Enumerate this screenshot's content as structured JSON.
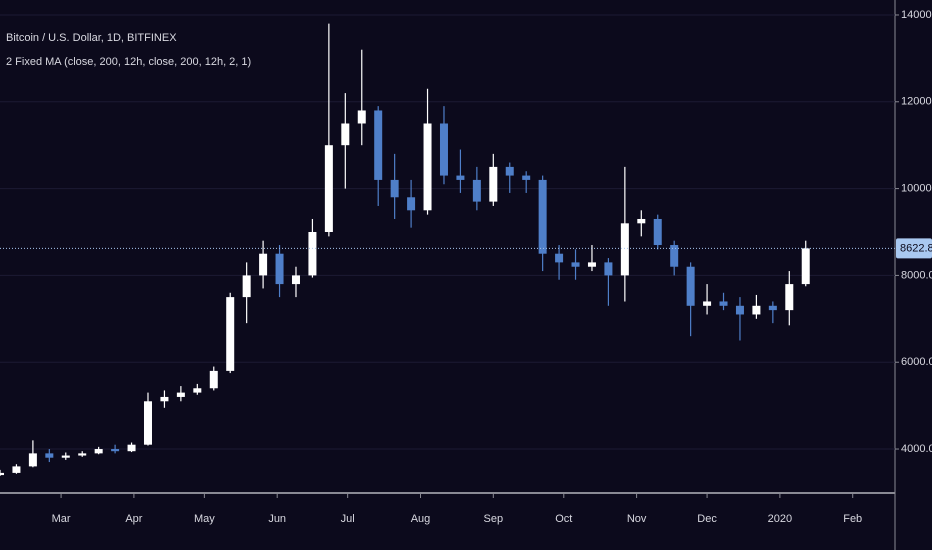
{
  "chart_data": {
    "type": "candlestick",
    "title": "Bitcoin / U.S. Dollar, 1D, BITFINEX",
    "subtitle": "2 Fixed MA (close, 200, 12h, close, 200, 12h, 2, 1)",
    "x": [
      0,
      7,
      14,
      21,
      28,
      35,
      42,
      49,
      56,
      63,
      70,
      77,
      84,
      91,
      98,
      105,
      112,
      119,
      126,
      133,
      140,
      147,
      154,
      161,
      168,
      175,
      182,
      189,
      196,
      203,
      210,
      217,
      224,
      231,
      238,
      245,
      252,
      259,
      266,
      273,
      280,
      287,
      294,
      301,
      308,
      315,
      322,
      329,
      336,
      343
    ],
    "open": [
      3400,
      3450,
      3600,
      3900,
      3800,
      3850,
      3900,
      4000,
      3950,
      4100,
      5100,
      5200,
      5300,
      5400,
      5800,
      7500,
      8000,
      8500,
      7800,
      8000,
      9000,
      11000,
      11500,
      11800,
      10200,
      9800,
      9500,
      11500,
      10300,
      10200,
      9700,
      10500,
      10300,
      10200,
      8500,
      8300,
      8200,
      8300,
      8000,
      9200,
      9300,
      8700,
      8200,
      7300,
      7400,
      7300,
      7100,
      7300,
      7200,
      7800
    ],
    "high": [
      3520,
      3650,
      4200,
      4000,
      3920,
      3950,
      4050,
      4100,
      4150,
      5300,
      5350,
      5450,
      5500,
      5900,
      7600,
      8300,
      8800,
      8700,
      8200,
      9300,
      13800,
      12200,
      13200,
      11900,
      10800,
      10200,
      12300,
      11900,
      10900,
      10500,
      10800,
      10600,
      10400,
      10300,
      8700,
      8600,
      8700,
      8400,
      10500,
      9500,
      9400,
      8800,
      8300,
      7800,
      7600,
      7500,
      7550,
      7400,
      8100,
      8800
    ],
    "low": [
      3380,
      3430,
      3580,
      3700,
      3750,
      3820,
      3880,
      3900,
      3930,
      4080,
      4950,
      5100,
      5250,
      5350,
      5750,
      6900,
      7700,
      7500,
      7500,
      7950,
      8900,
      10000,
      11000,
      9600,
      9300,
      9100,
      9400,
      10100,
      9900,
      9500,
      9600,
      9900,
      9900,
      8100,
      7900,
      7900,
      8100,
      7300,
      7400,
      8900,
      8600,
      8000,
      6600,
      7100,
      7200,
      6500,
      7000,
      6900,
      6850,
      7750
    ],
    "close": [
      3450,
      3600,
      3900,
      3800,
      3850,
      3900,
      4000,
      3950,
      4100,
      5100,
      5200,
      5300,
      5400,
      5800,
      7500,
      8000,
      8500,
      7800,
      8000,
      9000,
      11000,
      11500,
      11800,
      10200,
      9800,
      9500,
      11500,
      10300,
      10200,
      9700,
      10500,
      10300,
      10200,
      8500,
      8300,
      8200,
      8300,
      8000,
      9200,
      9300,
      8700,
      8200,
      7300,
      7400,
      7300,
      7100,
      7300,
      7200,
      7800,
      8622.8
    ],
    "up_color": "#ffffff",
    "down_color": "#4f7fc9",
    "xlim": [
      0,
      381
    ],
    "ylim": [
      3010,
      14345
    ],
    "xticks": [
      {
        "value": 26,
        "label": "Mar"
      },
      {
        "value": 57,
        "label": "Apr"
      },
      {
        "value": 87,
        "label": "May"
      },
      {
        "value": 118,
        "label": "Jun"
      },
      {
        "value": 148,
        "label": "Jul"
      },
      {
        "value": 179,
        "label": "Aug"
      },
      {
        "value": 210,
        "label": "Sep"
      },
      {
        "value": 240,
        "label": "Oct"
      },
      {
        "value": 271,
        "label": "Nov"
      },
      {
        "value": 301,
        "label": "Dec"
      },
      {
        "value": 332,
        "label": "2020"
      },
      {
        "value": 363,
        "label": "Feb"
      }
    ],
    "yticks": [
      {
        "value": 4000,
        "label": "4000.0"
      },
      {
        "value": 6000,
        "label": "6000.0"
      },
      {
        "value": 8000,
        "label": "8000.0"
      },
      {
        "value": 10000,
        "label": "10000.0"
      },
      {
        "value": 12000,
        "label": "12000.0"
      },
      {
        "value": 14000,
        "label": "14000.0"
      }
    ],
    "grid": true,
    "last_price": 8622.8,
    "last_price_color": "#a9c8f0"
  }
}
